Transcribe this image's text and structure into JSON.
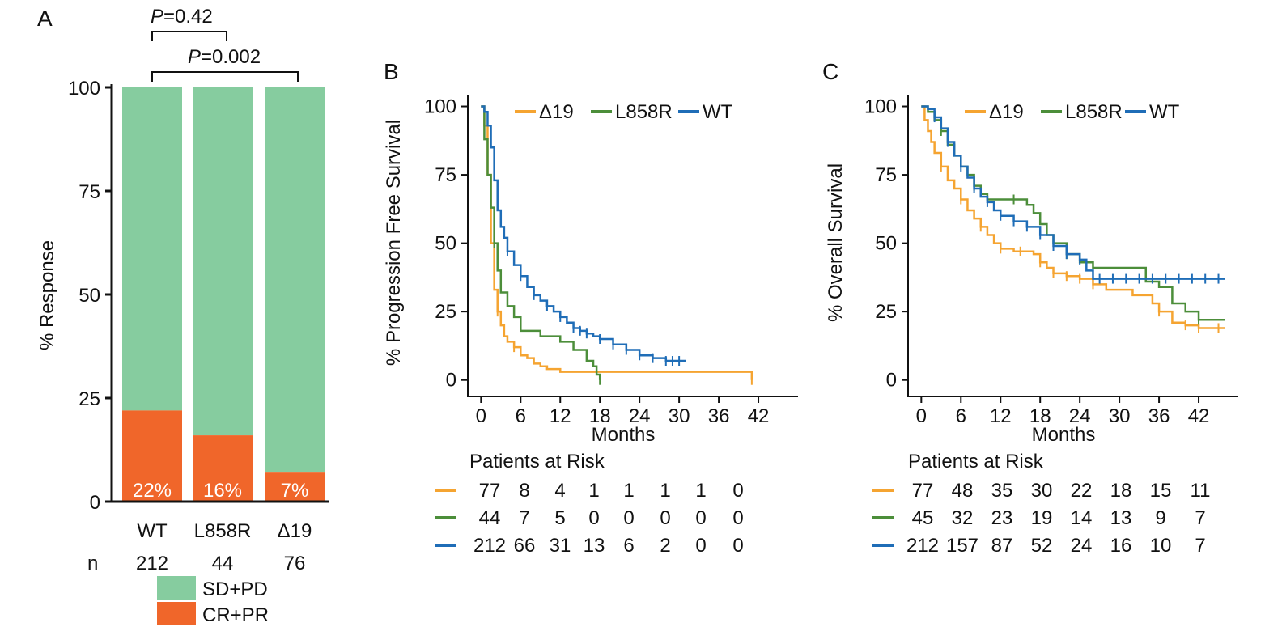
{
  "chart_data": [
    {
      "panel": "A",
      "type": "bar",
      "stacked": true,
      "ylabel": "% Response",
      "yticks": [
        "0",
        "25",
        "50",
        "75",
        "100"
      ],
      "ylim": [
        0,
        100
      ],
      "categories": [
        "WT",
        "L858R",
        "Δ19"
      ],
      "n_label": "n",
      "n_values": [
        "212",
        "44",
        "76"
      ],
      "series": [
        {
          "name": "CR+PR",
          "color": "#F0662A",
          "values": [
            22,
            16,
            7
          ],
          "labels": [
            "22%",
            "16%",
            "7%"
          ]
        },
        {
          "name": "SD+PD",
          "color": "#86CC9F",
          "values": [
            78,
            84,
            93
          ]
        }
      ],
      "annotations": [
        {
          "italic": "P",
          "text": "=0.42",
          "between": [
            "WT",
            "L858R"
          ]
        },
        {
          "italic": "P",
          "text": "=0.002",
          "between": [
            "WT",
            "Δ19"
          ]
        }
      ],
      "legend": [
        {
          "name": "SD+PD",
          "color": "#86CC9F"
        },
        {
          "name": "CR+PR",
          "color": "#F0662A"
        }
      ]
    },
    {
      "panel": "B",
      "type": "line",
      "step": true,
      "ylabel": "% Progression Free Survival",
      "xlabel": "Months",
      "xticks": [
        "0",
        "6",
        "12",
        "18",
        "24",
        "30",
        "36",
        "42"
      ],
      "yticks": [
        "0",
        "25",
        "50",
        "75",
        "100"
      ],
      "xlim": [
        -2,
        48
      ],
      "ylim": [
        -6,
        104
      ],
      "legend_position": "top",
      "series": [
        {
          "name": "Δ19",
          "color": "#F5A431",
          "x": [
            0,
            0.5,
            1,
            1.5,
            2,
            2.5,
            3,
            3.5,
            4,
            5,
            6,
            7,
            8,
            9,
            10,
            12,
            14,
            40.5,
            41
          ],
          "y": [
            100,
            93,
            75,
            50,
            33,
            25,
            20,
            16,
            14,
            12,
            9,
            8,
            6,
            5,
            4,
            3,
            3,
            3,
            0
          ],
          "censor_x": [
            2.5,
            5,
            41
          ]
        },
        {
          "name": "L858R",
          "color": "#4C8E3A",
          "x": [
            0,
            0.5,
            1,
            1.5,
            2,
            2.5,
            3,
            4,
            5,
            6,
            7,
            8,
            9,
            12,
            14,
            16,
            17,
            17.5,
            18
          ],
          "y": [
            100,
            88,
            75,
            63,
            50,
            40,
            32,
            27,
            23,
            18,
            18,
            18,
            16,
            14,
            11,
            7,
            5,
            2,
            0
          ],
          "censor_x": [
            2,
            18
          ]
        },
        {
          "name": "WT",
          "color": "#1F6DB7",
          "x": [
            0,
            0.5,
            1,
            1.5,
            2,
            2.5,
            3,
            3.5,
            4,
            5,
            6,
            7,
            8,
            9,
            10,
            11,
            12,
            13,
            14,
            15,
            16,
            17,
            18,
            20,
            22,
            24,
            26,
            28,
            30,
            31
          ],
          "y": [
            100,
            98,
            93,
            85,
            73,
            62,
            56,
            52,
            47,
            42,
            38,
            34,
            31,
            29,
            27,
            25,
            23,
            21,
            19,
            18,
            17,
            16,
            15,
            13,
            11,
            9,
            8,
            7,
            7,
            7
          ],
          "censor_x": [
            4,
            6,
            8,
            10,
            12,
            14,
            15,
            16,
            18,
            20,
            22,
            24,
            26,
            28,
            29,
            30
          ]
        }
      ],
      "risk_table": {
        "title": "Patients at Risk",
        "rows": [
          {
            "color": "#F5A431",
            "values": [
              "77",
              "8",
              "4",
              "1",
              "1",
              "1",
              "1",
              "0"
            ]
          },
          {
            "color": "#4C8E3A",
            "values": [
              "44",
              "7",
              "5",
              "0",
              "0",
              "0",
              "0",
              "0"
            ]
          },
          {
            "color": "#1F6DB7",
            "values": [
              "212",
              "66",
              "31",
              "13",
              "6",
              "2",
              "0",
              "0"
            ]
          }
        ]
      }
    },
    {
      "panel": "C",
      "type": "line",
      "step": true,
      "ylabel": "% Overall Survival",
      "xlabel": "Months",
      "xticks": [
        "0",
        "6",
        "12",
        "18",
        "24",
        "30",
        "36",
        "42"
      ],
      "yticks": [
        "0",
        "25",
        "50",
        "75",
        "100"
      ],
      "xlim": [
        -2,
        48
      ],
      "ylim": [
        -6,
        104
      ],
      "legend_position": "top",
      "series": [
        {
          "name": "Δ19",
          "color": "#F5A431",
          "x": [
            0,
            0.5,
            1,
            1.5,
            2,
            3,
            4,
            5,
            6,
            7,
            8,
            9,
            10,
            11,
            12,
            14,
            16,
            17,
            18,
            19,
            20,
            22,
            24,
            26,
            28,
            30,
            32,
            34,
            35,
            36,
            38,
            40,
            42,
            46
          ],
          "y": [
            100,
            95,
            91,
            87,
            83,
            78,
            73,
            70,
            66,
            62,
            59,
            56,
            53,
            50,
            48,
            47,
            47,
            46,
            43,
            41,
            39,
            38,
            37,
            35,
            33,
            33,
            31,
            31,
            28,
            25,
            21,
            20,
            19,
            19
          ],
          "censor_x": [
            3,
            6,
            9,
            12,
            15,
            18,
            20,
            22,
            24,
            26,
            36,
            40,
            42,
            45
          ]
        },
        {
          "name": "L858R",
          "color": "#4C8E3A",
          "x": [
            0,
            1,
            2,
            3,
            4,
            5,
            6,
            7,
            8,
            9,
            10,
            12,
            14,
            16,
            17,
            18,
            19,
            20,
            22,
            24,
            26,
            28,
            34,
            36,
            38,
            40,
            42,
            46
          ],
          "y": [
            100,
            98,
            95,
            91,
            86,
            82,
            78,
            75,
            71,
            68,
            66,
            66,
            66,
            64,
            61,
            57,
            53,
            50,
            46,
            43,
            41,
            41,
            36,
            34,
            28,
            25,
            22,
            22
          ],
          "censor_x": [
            3,
            8,
            14,
            22,
            42
          ]
        },
        {
          "name": "WT",
          "color": "#1F6DB7",
          "x": [
            0,
            1,
            2,
            3,
            4,
            5,
            6,
            7,
            8,
            9,
            10,
            11,
            12,
            14,
            16,
            18,
            20,
            22,
            24,
            25,
            26,
            28,
            30,
            32,
            34,
            36,
            38,
            40,
            42,
            44,
            46
          ],
          "y": [
            100,
            99,
            96,
            92,
            87,
            82,
            78,
            74,
            70,
            67,
            65,
            62,
            60,
            58,
            56,
            53,
            49,
            46,
            44,
            40,
            37,
            37,
            37,
            37,
            37,
            37,
            37,
            37,
            37,
            37,
            37
          ],
          "censor_x": [
            2,
            4,
            6,
            8,
            10,
            12,
            14,
            16,
            18,
            20,
            22,
            24,
            27,
            29,
            31,
            33,
            35,
            37,
            39,
            41,
            43,
            45
          ]
        }
      ],
      "risk_table": {
        "title": "Patients at Risk",
        "rows": [
          {
            "color": "#F5A431",
            "values": [
              "77",
              "48",
              "35",
              "30",
              "22",
              "18",
              "15",
              "11"
            ]
          },
          {
            "color": "#4C8E3A",
            "values": [
              "45",
              "32",
              "23",
              "19",
              "14",
              "13",
              "9",
              "7"
            ]
          },
          {
            "color": "#1F6DB7",
            "values": [
              "212",
              "157",
              "87",
              "52",
              "24",
              "16",
              "10",
              "7"
            ]
          }
        ]
      }
    }
  ],
  "panel_labels": [
    "A",
    "B",
    "C"
  ]
}
